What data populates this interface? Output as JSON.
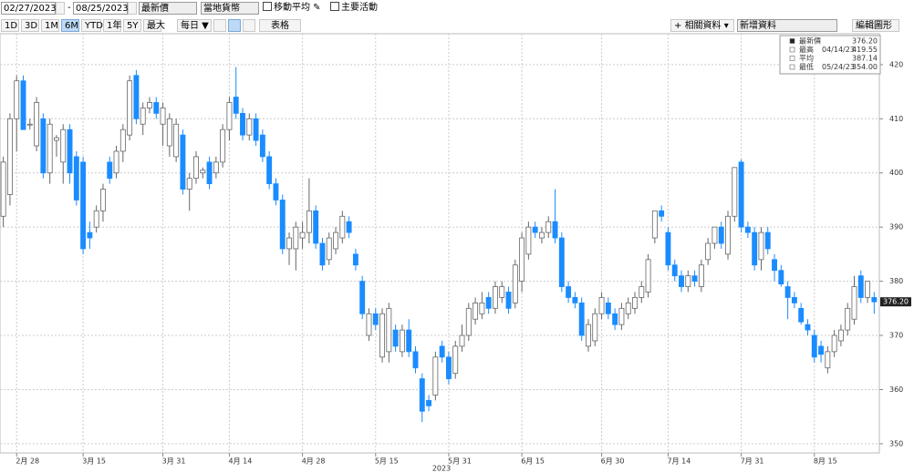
{
  "toolbar": {
    "start_date": "02/27/2023",
    "end_date": "08/25/2023",
    "price_field": "最新價",
    "currency": "當地貨幣",
    "checkboxes": [
      "移動平均",
      "主要活動"
    ],
    "periods": [
      "1D",
      "3D",
      "1M",
      "6M",
      "YTD",
      "1年",
      "5Y",
      "最大"
    ],
    "selected_period": "6M",
    "frequency": "每日",
    "table": "表格",
    "related": "相關資料",
    "add_data": "新增資料",
    "edit_chart": "編輯圖形"
  },
  "chart_data": {
    "type": "candlestick",
    "xlabel": "2023",
    "categories": [
      null,
      null,
      "2月 28",
      null,
      null,
      null,
      null,
      null,
      null,
      null,
      null,
      null,
      "3月 15",
      null,
      null,
      null,
      null,
      null,
      null,
      null,
      null,
      null,
      null,
      null,
      "3月 31",
      null,
      null,
      null,
      null,
      null,
      null,
      null,
      null,
      null,
      "4月 14",
      null,
      null,
      null,
      null,
      null,
      null,
      null,
      null,
      null,
      null,
      "4月 28",
      null,
      null,
      null,
      null,
      null,
      null,
      null,
      null,
      null,
      null,
      "5月 15",
      null,
      null,
      null,
      null,
      null,
      null,
      null,
      null,
      null,
      null,
      "5月 31",
      null,
      null,
      null,
      null,
      null,
      null,
      null,
      null,
      null,
      null,
      "6月 15",
      null,
      null,
      null,
      null,
      null,
      null,
      null,
      null,
      null,
      null,
      null,
      "6月 30",
      null,
      null,
      null,
      null,
      null,
      null,
      null,
      null,
      null,
      "7月 14",
      null,
      null,
      null,
      null,
      null,
      null,
      null,
      null,
      null,
      null,
      "7月 31",
      null,
      null,
      null,
      null,
      null,
      null,
      null,
      null,
      null,
      null,
      "8月 15",
      null,
      null,
      null,
      null,
      null,
      null,
      null,
      null,
      null
    ],
    "open": [
      392,
      396,
      410,
      417,
      409,
      405,
      410,
      400,
      406,
      402,
      408,
      403,
      402,
      389,
      390,
      393,
      402,
      400,
      404,
      407,
      418,
      409,
      412,
      413,
      409,
      405,
      403,
      407,
      397,
      399,
      400,
      402,
      400,
      402,
      408,
      414,
      411,
      407,
      410,
      407,
      403,
      398,
      395,
      386,
      386,
      388,
      389,
      393,
      387,
      384,
      386,
      388,
      391,
      385,
      380,
      370,
      374,
      366,
      367,
      371,
      367,
      371,
      367,
      362,
      358,
      359,
      368,
      366,
      363,
      368,
      370,
      373,
      374,
      377,
      375,
      377,
      378,
      376,
      380,
      385,
      390,
      388,
      389,
      391,
      388,
      379,
      377,
      376,
      368,
      369,
      374,
      376,
      374,
      372,
      374,
      375,
      377,
      378,
      388,
      393,
      389,
      383,
      381,
      379,
      381,
      379,
      384,
      387,
      390,
      385,
      392,
      402,
      390,
      389,
      384,
      389,
      384,
      382,
      379,
      377,
      375,
      372,
      370,
      368,
      364,
      367,
      369,
      371,
      373,
      381,
      377,
      377
    ],
    "high": [
      403,
      411,
      418,
      418,
      410,
      414,
      411,
      410,
      407,
      409,
      409,
      404,
      403,
      391,
      394,
      398,
      403,
      405,
      409,
      418,
      419,
      413,
      414,
      414,
      413,
      411,
      410,
      408,
      400,
      404,
      401,
      403,
      403,
      409,
      414,
      419.55,
      412,
      411,
      411,
      408,
      404,
      399,
      396,
      389,
      391,
      391,
      399,
      394,
      388,
      389,
      390,
      393,
      392,
      386,
      381,
      375,
      375,
      375,
      376,
      372,
      372,
      373,
      368,
      363,
      359,
      367,
      369,
      367,
      369,
      372,
      376,
      377,
      378,
      378,
      380,
      380,
      379,
      384,
      389,
      391,
      391,
      390,
      392,
      397,
      389,
      380,
      378,
      377,
      373,
      375,
      378,
      377,
      375,
      376,
      377,
      378,
      380,
      385,
      393,
      394,
      390,
      384,
      382,
      382,
      382,
      384,
      388,
      390,
      391,
      393,
      401,
      402.5,
      391,
      390,
      390,
      390,
      385,
      383,
      380,
      378,
      376,
      373,
      371,
      369,
      368,
      371,
      372,
      376,
      381,
      382,
      380,
      378
    ],
    "low": [
      390,
      394,
      404,
      408,
      408,
      404,
      399,
      398,
      403,
      398,
      398,
      394,
      385,
      386,
      389,
      391,
      398,
      399,
      402,
      406,
      409,
      407,
      411,
      410,
      405,
      403,
      402,
      396,
      393,
      398,
      399,
      397,
      399,
      401,
      406,
      410,
      406,
      406,
      405,
      402,
      397,
      394,
      385,
      383,
      382,
      386,
      387,
      386,
      382,
      383,
      385,
      387,
      388,
      382,
      373,
      369,
      371,
      365,
      365,
      367,
      366,
      366,
      363,
      354,
      356,
      358,
      365,
      361,
      362,
      367,
      369,
      372,
      373,
      374,
      374,
      376,
      374,
      375,
      378,
      384,
      388,
      387,
      388,
      387,
      378,
      376,
      375,
      369,
      367,
      368,
      373,
      373,
      371,
      371,
      373,
      374,
      376,
      377,
      387,
      391,
      382,
      380,
      378,
      378,
      379,
      378,
      383,
      386,
      386,
      384,
      391,
      389,
      388,
      382,
      382,
      385,
      380,
      379,
      373,
      375,
      372,
      370,
      365,
      365,
      363,
      366,
      368,
      370,
      372,
      376,
      376,
      374
    ],
    "close": [
      402,
      410,
      417,
      408,
      409,
      413,
      400,
      409,
      406.5,
      408,
      400,
      395,
      386,
      388,
      393,
      397,
      399,
      404,
      408,
      417,
      410,
      412,
      413,
      411,
      412,
      410,
      409,
      397,
      399,
      403,
      400.5,
      398,
      402,
      408,
      413,
      411,
      407,
      410,
      406,
      403,
      398,
      395,
      386,
      388,
      390,
      389,
      393,
      387,
      383,
      388,
      389,
      392,
      389,
      383,
      374,
      374,
      372,
      374,
      375,
      368,
      371,
      367,
      364,
      356,
      357,
      366,
      366,
      362,
      368,
      370,
      375,
      376,
      376,
      375,
      379,
      379,
      375,
      383,
      388,
      390,
      389,
      389,
      391,
      388,
      379,
      377,
      376,
      370,
      372,
      374,
      377,
      374,
      372,
      375,
      376,
      377,
      379,
      384,
      393,
      392,
      383,
      381,
      379,
      381,
      380,
      383,
      387,
      390,
      387,
      392,
      401,
      390,
      389,
      383,
      389,
      386,
      382,
      379.5,
      377,
      376,
      372.5,
      371,
      366,
      366.5,
      367,
      370,
      371,
      375,
      379,
      377,
      380,
      376.2
    ],
    "up_color": "#ffffff",
    "down_color": "#1a8cff",
    "ylim": [
      348.3,
      425.7
    ],
    "yticks": [
      350,
      360,
      370,
      380,
      390,
      400,
      410,
      420
    ],
    "grid": true,
    "last_value": 376.2,
    "last_label": "376.20",
    "legend": [
      {
        "label": "最新價",
        "value": 376.2,
        "value_label": "376.20"
      },
      {
        "label": "最高",
        "date": "04/14/23",
        "value": 419.55
      },
      {
        "label": "平均",
        "value": 387.14
      },
      {
        "label": "最低",
        "date": "05/24/23",
        "value": 354,
        "value_label": "354.00"
      }
    ]
  }
}
